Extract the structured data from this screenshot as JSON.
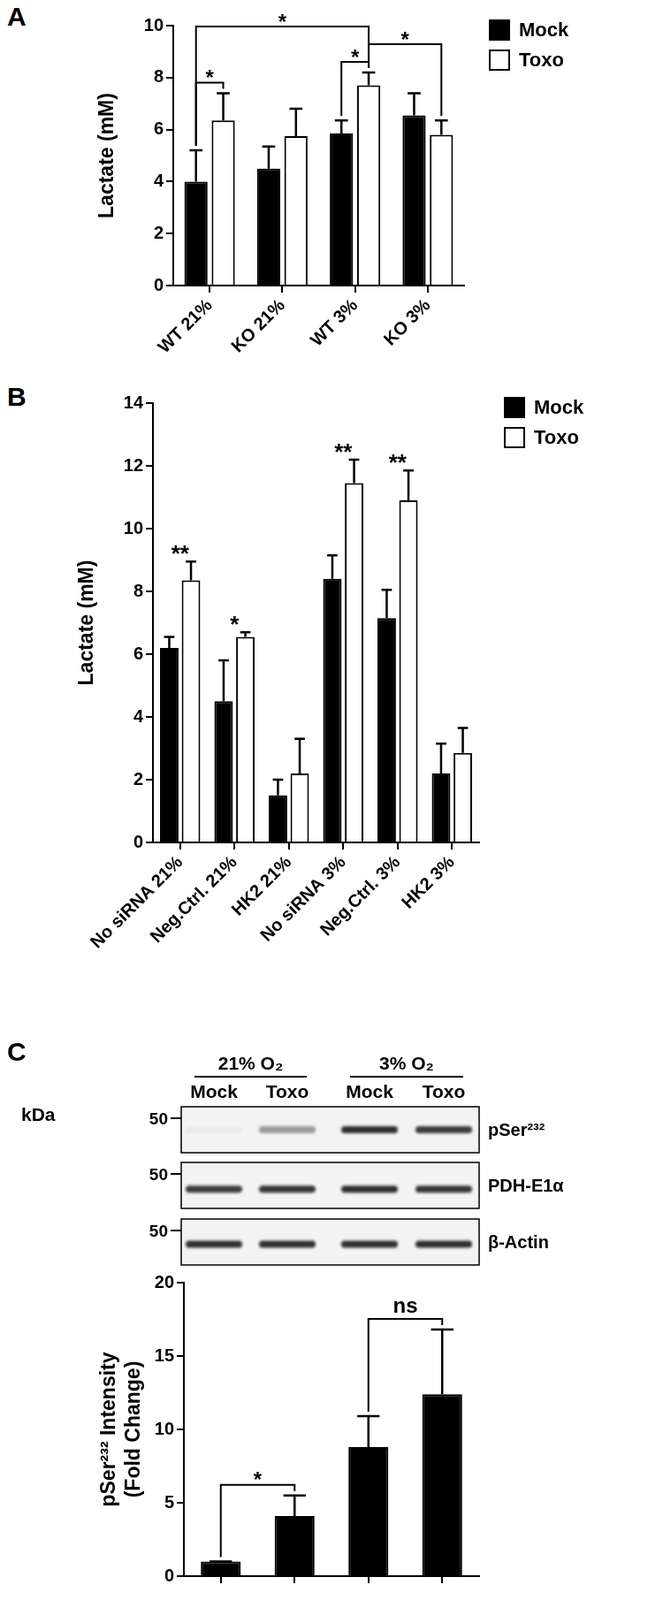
{
  "chart_data": [
    {
      "panel": "A",
      "type": "bar",
      "categories": [
        "WT 21%",
        "KO 21%",
        "WT 3%",
        "KO 3%"
      ],
      "series": [
        {
          "name": "Mock",
          "color": "#000000",
          "values": [
            4.0,
            4.5,
            5.85,
            6.55
          ],
          "errors": [
            1.2,
            0.85,
            0.5,
            0.85
          ]
        },
        {
          "name": "Toxo",
          "color": "#ffffff",
          "values": [
            6.35,
            5.75,
            7.7,
            5.8
          ],
          "errors": [
            1.05,
            1.05,
            0.5,
            0.55
          ]
        }
      ],
      "y_label": "Lactate (mM)",
      "ylim": [
        0,
        10
      ],
      "yticks": [
        0,
        2,
        4,
        6,
        8,
        10
      ],
      "grid": false,
      "legend": "right",
      "annotations": [
        {
          "text": "*",
          "between": [
            [
              "WT 21%",
              "Mock"
            ],
            [
              "WT 21%",
              "Toxo"
            ]
          ]
        },
        {
          "text": "*",
          "between": [
            [
              "WT 21%",
              "Mock"
            ],
            [
              "WT 3%",
              "Toxo"
            ]
          ]
        },
        {
          "text": "*",
          "between": [
            [
              "WT 3%",
              "Mock"
            ],
            [
              "WT 3%",
              "Toxo"
            ]
          ]
        },
        {
          "text": "*",
          "between": [
            [
              "WT 3%",
              "Toxo"
            ],
            [
              "KO 3%",
              "Toxo"
            ]
          ]
        }
      ]
    },
    {
      "panel": "B",
      "type": "bar",
      "categories": [
        "No siRNA 21%",
        "Neg.Ctrl. 21%",
        "HK2 21%",
        "No siRNA 3%",
        "Neg.Ctrl. 3%",
        "HK2 3%"
      ],
      "series": [
        {
          "name": "Mock",
          "color": "#000000",
          "values": [
            6.2,
            4.5,
            1.5,
            8.4,
            7.15,
            2.2
          ],
          "errors": [
            0.35,
            1.3,
            0.5,
            0.75,
            0.9,
            0.95
          ]
        },
        {
          "name": "Toxo",
          "color": "#ffffff",
          "values": [
            8.35,
            6.55,
            2.2,
            11.45,
            10.9,
            2.85
          ],
          "errors": [
            0.6,
            0.15,
            1.1,
            0.75,
            0.95,
            0.8
          ]
        }
      ],
      "y_label": "Lactate (mM)",
      "ylim": [
        0,
        14
      ],
      "yticks": [
        0,
        2,
        4,
        6,
        8,
        10,
        12,
        14
      ],
      "grid": false,
      "legend": "right",
      "annotations": [
        {
          "text": "**",
          "category": "No siRNA 21%"
        },
        {
          "text": "*",
          "category": "Neg.Ctrl. 21%"
        },
        {
          "text": "**",
          "category": "No siRNA 3%"
        },
        {
          "text": "**",
          "category": "Neg.Ctrl. 3%"
        }
      ]
    },
    {
      "type": "bar",
      "categories": [
        null,
        null,
        null,
        null
      ],
      "values": [
        1.0,
        4.1,
        8.8,
        12.4
      ],
      "errors": [
        0,
        1.4,
        2.1,
        4.4
      ],
      "color": "#000000",
      "y_label": [
        "pSer²³² Intensity",
        "(Fold Change)"
      ],
      "ylim": [
        0,
        20
      ],
      "yticks": [
        0,
        5,
        10,
        15,
        20
      ],
      "grid": false,
      "tick_labels": "y",
      "annotations": [
        {
          "text": "*",
          "between": [
            0,
            1
          ]
        },
        {
          "text": "ns",
          "between": [
            2,
            3
          ]
        }
      ]
    }
  ],
  "blot": {
    "panel": "C",
    "groups": [
      {
        "label": "21% O₂",
        "lanes": [
          "Mock",
          "Toxo"
        ]
      },
      {
        "label": "3% O₂",
        "lanes": [
          "Mock",
          "Toxo"
        ]
      }
    ],
    "marker_unit": "kDa",
    "rows": [
      {
        "label": "pSer²³²",
        "marker": 50
      },
      {
        "label": "PDH-E1α",
        "marker": 50
      },
      {
        "label": "β-Actin",
        "marker": 50
      }
    ]
  }
}
